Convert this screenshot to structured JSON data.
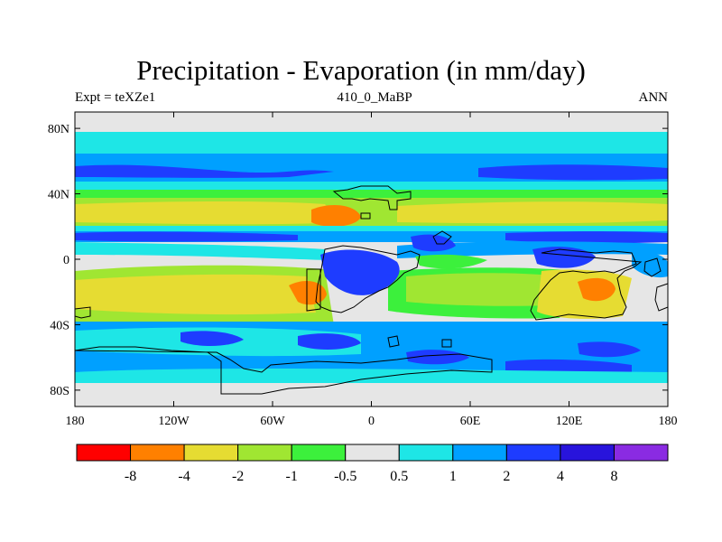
{
  "title": "Precipitation - Evaporation (in mm/day)",
  "subtitle_left": "Expt = teXZe1",
  "subtitle_center": "410_0_MaBP",
  "subtitle_right": "ANN",
  "lat_labels": [
    "80N",
    "40N",
    "0",
    "40S",
    "80S"
  ],
  "lon_labels": [
    "180",
    "120W",
    "60W",
    "0",
    "60E",
    "120E",
    "180"
  ],
  "colorbar": {
    "colors": [
      "#ff0000",
      "#ff8000",
      "#e6dc32",
      "#a0e632",
      "#3cf03c",
      "#e6e6e6",
      "#1ee6e6",
      "#00a0ff",
      "#1e3cff",
      "#2814dc",
      "#8a2be2"
    ],
    "labels": [
      "-8",
      "-4",
      "-2",
      "-1",
      "-0.5",
      "0.5",
      "1",
      "2",
      "4",
      "8"
    ]
  },
  "colors": {
    "red": "#ff0000",
    "orange": "#ff8000",
    "yellow": "#e6dc32",
    "lightgreen": "#a0e632",
    "green": "#3cf03c",
    "gray": "#e6e6e6",
    "cyan": "#1ee6e6",
    "lightblue": "#00a0ff",
    "blue": "#1e3cff",
    "darkblue": "#2814dc",
    "purple": "#8a2be2"
  }
}
